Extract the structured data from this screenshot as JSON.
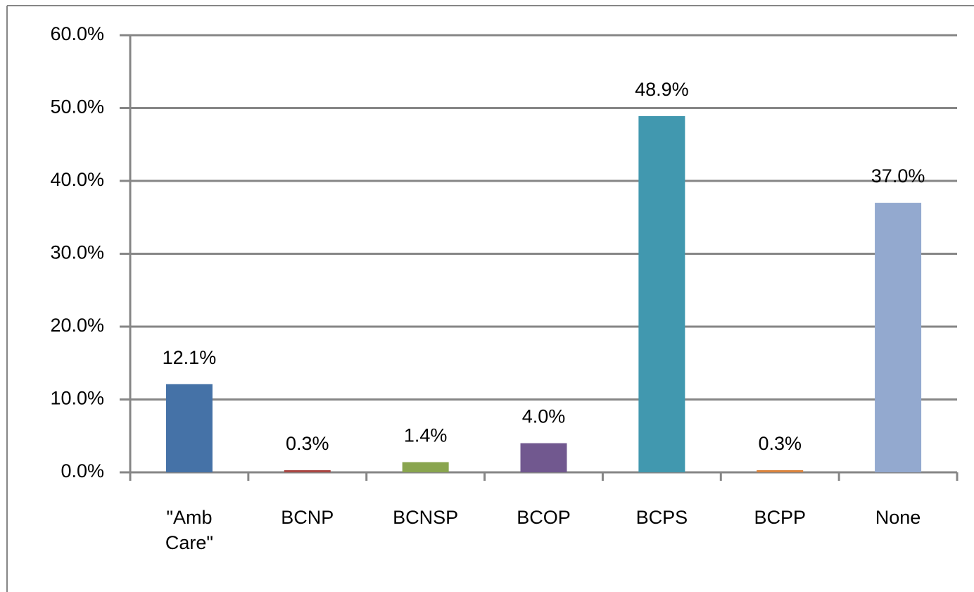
{
  "chart_data": {
    "type": "bar",
    "categories": [
      "\"Amb Care\"",
      "BCNP",
      "BCNSP",
      "BCOP",
      "BCPS",
      "BCPP",
      "None"
    ],
    "values": [
      12.1,
      0.3,
      1.4,
      4.0,
      48.9,
      0.3,
      37.0
    ],
    "value_labels": [
      "12.1%",
      "0.3%",
      "1.4%",
      "4.0%",
      "48.9%",
      "0.3%",
      "37.0%"
    ],
    "colors": [
      "#4572a7",
      "#aa4643",
      "#89a54e",
      "#71588f",
      "#4198af",
      "#db843d",
      "#93a9cf"
    ],
    "ylim": [
      0,
      60
    ],
    "yticks": [
      {
        "value": 0,
        "label": "0.0%"
      },
      {
        "value": 10,
        "label": "10.0%"
      },
      {
        "value": 20,
        "label": "20.0%"
      },
      {
        "value": 30,
        "label": "30.0%"
      },
      {
        "value": 40,
        "label": "40.0%"
      },
      {
        "value": 50,
        "label": "50.0%"
      },
      {
        "value": 60,
        "label": "60.0%"
      }
    ],
    "grid": true
  }
}
